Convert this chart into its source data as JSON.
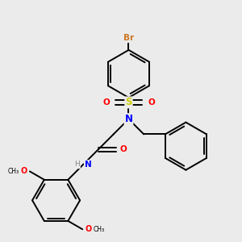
{
  "background_color": "#ebebeb",
  "bond_color": "#000000",
  "atom_colors": {
    "Br": "#cc7722",
    "S": "#cccc00",
    "N": "#0000ff",
    "O": "#ff0000",
    "H": "#888888",
    "C": "#000000"
  },
  "title": ""
}
